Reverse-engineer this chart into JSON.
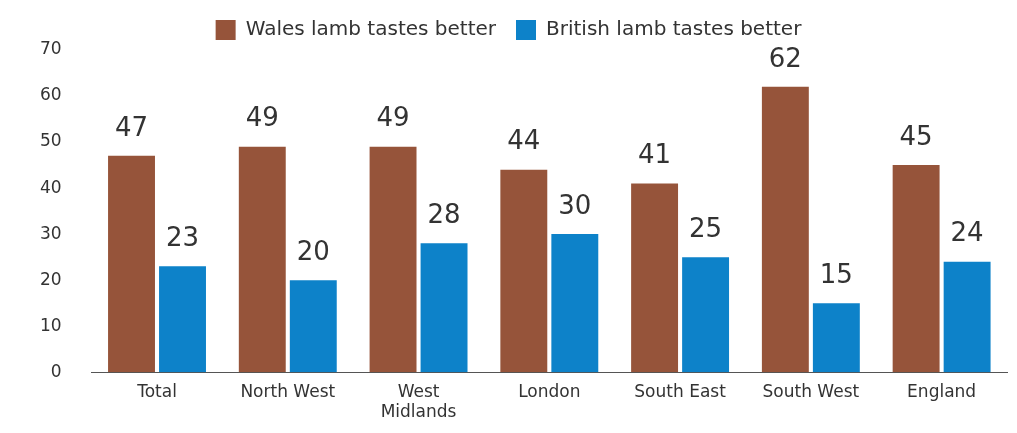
{
  "chart_data": {
    "type": "bar",
    "categories": [
      "Total",
      "North West",
      "West Midlands",
      "London",
      "South East",
      "South West",
      "England"
    ],
    "series": [
      {
        "name": "Wales lamb tastes better",
        "color": "#96543a",
        "values": [
          47,
          49,
          49,
          44,
          41,
          62,
          45
        ]
      },
      {
        "name": "British lamb tastes better",
        "color": "#0d82c9",
        "values": [
          23,
          20,
          28,
          30,
          25,
          15,
          24
        ]
      }
    ],
    "ylim": [
      0,
      70
    ],
    "yticks": [
      0,
      10,
      20,
      30,
      40,
      50,
      60,
      70
    ],
    "grid": false,
    "legend": "top",
    "data_labels": true
  }
}
